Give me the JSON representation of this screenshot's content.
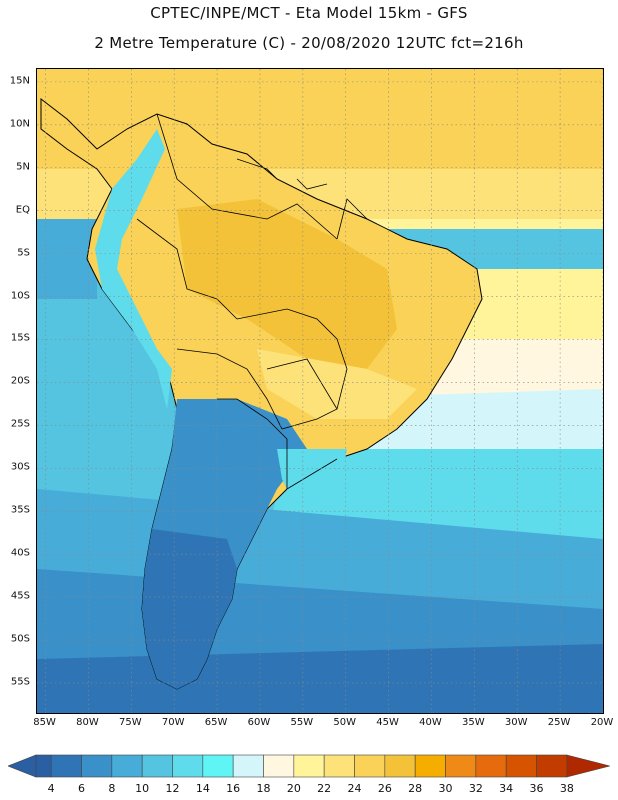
{
  "header": {
    "line1": "CPTEC/INPE/MCT -  Eta Model 15km - GFS",
    "line2": "2 Metre Temperature (C) - 20/08/2020 12UTC fct=216h"
  },
  "map": {
    "lat_labels": [
      {
        "lat": 15,
        "label": "15N"
      },
      {
        "lat": 10,
        "label": "10N"
      },
      {
        "lat": 5,
        "label": "5N"
      },
      {
        "lat": 0,
        "label": "EQ"
      },
      {
        "lat": -5,
        "label": "5S"
      },
      {
        "lat": -10,
        "label": "10S"
      },
      {
        "lat": -15,
        "label": "15S"
      },
      {
        "lat": -20,
        "label": "20S"
      },
      {
        "lat": -25,
        "label": "25S"
      },
      {
        "lat": -30,
        "label": "30S"
      },
      {
        "lat": -35,
        "label": "35S"
      },
      {
        "lat": -40,
        "label": "40S"
      },
      {
        "lat": -45,
        "label": "45S"
      },
      {
        "lat": -50,
        "label": "50S"
      },
      {
        "lat": -55,
        "label": "55S"
      }
    ],
    "lon_labels": [
      {
        "lon": -85,
        "label": "85W"
      },
      {
        "lon": -80,
        "label": "80W"
      },
      {
        "lon": -75,
        "label": "75W"
      },
      {
        "lon": -70,
        "label": "70W"
      },
      {
        "lon": -65,
        "label": "65W"
      },
      {
        "lon": -60,
        "label": "60W"
      },
      {
        "lon": -55,
        "label": "55W"
      },
      {
        "lon": -50,
        "label": "50W"
      },
      {
        "lon": -45,
        "label": "45W"
      },
      {
        "lon": -40,
        "label": "40W"
      },
      {
        "lon": -35,
        "label": "35W"
      },
      {
        "lon": -30,
        "label": "30W"
      },
      {
        "lon": -25,
        "label": "25W"
      },
      {
        "lon": -20,
        "label": "20W"
      }
    ],
    "lon_range": [
      -86,
      -20
    ],
    "lat_range": [
      -58.5,
      16.5
    ]
  },
  "colorbar": {
    "levels": [
      4,
      6,
      8,
      10,
      12,
      14,
      16,
      18,
      20,
      22,
      24,
      26,
      28,
      30,
      32,
      34,
      36,
      38
    ],
    "colors": [
      "#2b5fa4",
      "#2f75b5",
      "#3a90c8",
      "#48acd8",
      "#55c4e0",
      "#5fdcec",
      "#5ff5f5",
      "#d4f6fb",
      "#fff7e0",
      "#fff49a",
      "#fde27a",
      "#f9d257",
      "#f3c238",
      "#f5ad00",
      "#ef8a17",
      "#e56b0c",
      "#d65400",
      "#c23c00",
      "#b02800"
    ]
  }
}
